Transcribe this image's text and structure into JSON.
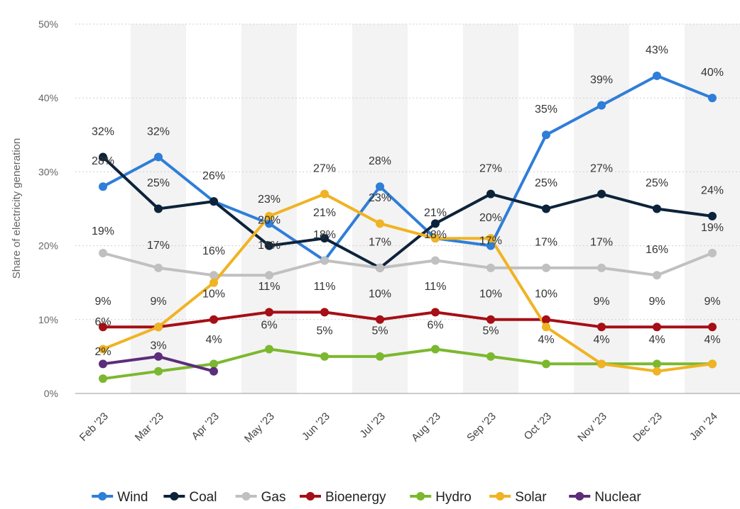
{
  "chart_data": {
    "type": "line",
    "title": "",
    "xlabel": "",
    "ylabel": "Share of electricity generation",
    "ylim": [
      0,
      50
    ],
    "yticks": [
      0,
      10,
      20,
      30,
      40,
      50
    ],
    "ytick_labels": [
      "0%",
      "10%",
      "20%",
      "30%",
      "40%",
      "50%"
    ],
    "grid": true,
    "legend_position": "bottom",
    "categories": [
      "Feb '23",
      "Mar '23",
      "Apr '23",
      "May '23",
      "Jun '23",
      "Jul '23",
      "Aug '23",
      "Sep '23",
      "Oct '23",
      "Nov '23",
      "Dec '23",
      "Jan '24"
    ],
    "series": [
      {
        "name": "Wind",
        "color": "#2f7ed8",
        "values": [
          28,
          32,
          26,
          23,
          18,
          28,
          21,
          20,
          35,
          39,
          43,
          40
        ],
        "labels": [
          "28%",
          "32%",
          "26%",
          "23%",
          "18%",
          "28%",
          "21%",
          "20%",
          "35%",
          "39%",
          "43%",
          "40%"
        ]
      },
      {
        "name": "Coal",
        "color": "#0d233a",
        "values": [
          32,
          25,
          26,
          20,
          21,
          17,
          23,
          27,
          25,
          27,
          25,
          24
        ],
        "labels": [
          "32%",
          "25%",
          "26%",
          "20%",
          "21%",
          "17%",
          "23%",
          "27%",
          "25%",
          "27%",
          "25%",
          "24%"
        ]
      },
      {
        "name": "Gas",
        "color": "#c0c0c0",
        "values": [
          19,
          17,
          16,
          16,
          18,
          17,
          18,
          17,
          17,
          17,
          16,
          19
        ],
        "labels": [
          "19%",
          "17%",
          "16%",
          "16%",
          "18%",
          "17%",
          "18%",
          "17%",
          "17%",
          "17%",
          "16%",
          "19%"
        ]
      },
      {
        "name": "Bioenergy",
        "color": "#a50f15",
        "values": [
          9,
          9,
          10,
          11,
          11,
          10,
          11,
          10,
          10,
          9,
          9,
          9
        ],
        "labels": [
          "9%",
          "9%",
          "10%",
          "11%",
          "11%",
          "10%",
          "11%",
          "10%",
          "10%",
          "9%",
          "9%",
          "9%"
        ]
      },
      {
        "name": "Hydro",
        "color": "#7cb82f",
        "values": [
          2,
          3,
          4,
          6,
          5,
          5,
          6,
          5,
          4,
          4,
          4,
          4
        ],
        "labels": [
          "2%",
          "3%",
          "4%",
          "6%",
          "5%",
          "5%",
          "6%",
          "5%",
          "4%",
          "4%",
          "4%",
          "4%"
        ]
      },
      {
        "name": "Solar",
        "color": "#f0b323",
        "values": [
          6,
          9,
          15,
          24,
          27,
          23,
          21,
          21,
          9,
          4,
          3,
          4
        ],
        "labels": [
          "6%",
          "9%",
          "15%",
          "24%",
          "27%",
          "23%",
          "21%",
          "21%",
          "9%",
          "4%",
          "3%",
          "4%"
        ]
      },
      {
        "name": "Nuclear",
        "color": "#5c2d7a",
        "values": [
          4,
          5,
          3,
          null,
          null,
          null,
          null,
          null,
          null,
          null,
          null,
          null
        ],
        "labels": [
          "4%",
          "5%",
          "3%",
          null,
          null,
          null,
          null,
          null,
          null,
          null,
          null,
          null
        ]
      }
    ],
    "visible_data_labels": [
      {
        "text": "32%",
        "cat": 0,
        "y": 35
      },
      {
        "text": "28%",
        "cat": 0,
        "y": 31
      },
      {
        "text": "19%",
        "cat": 0,
        "y": 21.5
      },
      {
        "text": "9%",
        "cat": 0,
        "y": 12
      },
      {
        "text": "6%",
        "cat": 0,
        "y": 9.2
      },
      {
        "text": "2%",
        "cat": 0,
        "y": 5.2
      },
      {
        "text": "32%",
        "cat": 1,
        "y": 35
      },
      {
        "text": "25%",
        "cat": 1,
        "y": 28
      },
      {
        "text": "17%",
        "cat": 1,
        "y": 19.6
      },
      {
        "text": "9%",
        "cat": 1,
        "y": 12
      },
      {
        "text": "3%",
        "cat": 1,
        "y": 6
      },
      {
        "text": "26%",
        "cat": 2,
        "y": 29
      },
      {
        "text": "16%",
        "cat": 2,
        "y": 18.8
      },
      {
        "text": "10%",
        "cat": 2,
        "y": 13
      },
      {
        "text": "4%",
        "cat": 2,
        "y": 6.8
      },
      {
        "text": "23%",
        "cat": 3,
        "y": 25.8
      },
      {
        "text": "20%",
        "cat": 3,
        "y": 23
      },
      {
        "text": "16%",
        "cat": 3,
        "y": 19.6
      },
      {
        "text": "11%",
        "cat": 3,
        "y": 14
      },
      {
        "text": "6%",
        "cat": 3,
        "y": 8.8
      },
      {
        "text": "27%",
        "cat": 4,
        "y": 30
      },
      {
        "text": "21%",
        "cat": 4,
        "y": 24
      },
      {
        "text": "18%",
        "cat": 4,
        "y": 21
      },
      {
        "text": "11%",
        "cat": 4,
        "y": 14
      },
      {
        "text": "5%",
        "cat": 4,
        "y": 8
      },
      {
        "text": "28%",
        "cat": 5,
        "y": 31
      },
      {
        "text": "23%",
        "cat": 5,
        "y": 26
      },
      {
        "text": "17%",
        "cat": 5,
        "y": 20
      },
      {
        "text": "10%",
        "cat": 5,
        "y": 13
      },
      {
        "text": "5%",
        "cat": 5,
        "y": 8
      },
      {
        "text": "21%",
        "cat": 6,
        "y": 24
      },
      {
        "text": "18%",
        "cat": 6,
        "y": 21
      },
      {
        "text": "11%",
        "cat": 6,
        "y": 14
      },
      {
        "text": "6%",
        "cat": 6,
        "y": 8.8
      },
      {
        "text": "27%",
        "cat": 7,
        "y": 30
      },
      {
        "text": "20%",
        "cat": 7,
        "y": 23.3
      },
      {
        "text": "17%",
        "cat": 7,
        "y": 20.2
      },
      {
        "text": "10%",
        "cat": 7,
        "y": 13
      },
      {
        "text": "5%",
        "cat": 7,
        "y": 8
      },
      {
        "text": "35%",
        "cat": 8,
        "y": 38
      },
      {
        "text": "25%",
        "cat": 8,
        "y": 28
      },
      {
        "text": "17%",
        "cat": 8,
        "y": 20
      },
      {
        "text": "10%",
        "cat": 8,
        "y": 13
      },
      {
        "text": "4%",
        "cat": 8,
        "y": 6.8
      },
      {
        "text": "39%",
        "cat": 9,
        "y": 42
      },
      {
        "text": "27%",
        "cat": 9,
        "y": 30
      },
      {
        "text": "17%",
        "cat": 9,
        "y": 20
      },
      {
        "text": "9%",
        "cat": 9,
        "y": 12
      },
      {
        "text": "4%",
        "cat": 9,
        "y": 6.8
      },
      {
        "text": "43%",
        "cat": 10,
        "y": 46
      },
      {
        "text": "25%",
        "cat": 10,
        "y": 28
      },
      {
        "text": "16%",
        "cat": 10,
        "y": 19
      },
      {
        "text": "9%",
        "cat": 10,
        "y": 12
      },
      {
        "text": "4%",
        "cat": 10,
        "y": 6.8
      },
      {
        "text": "40%",
        "cat": 11,
        "y": 43
      },
      {
        "text": "24%",
        "cat": 11,
        "y": 27
      },
      {
        "text": "19%",
        "cat": 11,
        "y": 22
      },
      {
        "text": "9%",
        "cat": 11,
        "y": 12
      },
      {
        "text": "4%",
        "cat": 11,
        "y": 6.8
      }
    ]
  }
}
